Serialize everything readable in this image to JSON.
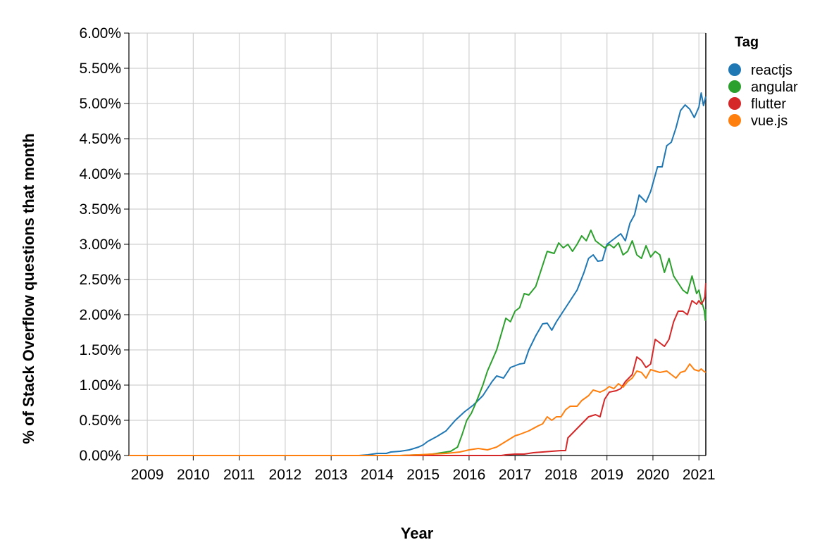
{
  "chart_data": {
    "type": "line",
    "xlabel": "Year",
    "ylabel": "% of Stack Overflow questions that month",
    "x_domain": [
      2008.6,
      2021.15
    ],
    "ylim": [
      0,
      6.0
    ],
    "x_ticks": [
      2009,
      2010,
      2011,
      2012,
      2013,
      2014,
      2015,
      2016,
      2017,
      2018,
      2019,
      2020,
      2021
    ],
    "x_tick_labels": [
      "2009",
      "2010",
      "2011",
      "2012",
      "2013",
      "2014",
      "2015",
      "2016",
      "2017",
      "2018",
      "2019",
      "2020",
      "2021"
    ],
    "y_ticks": [
      0,
      0.5,
      1.0,
      1.5,
      2.0,
      2.5,
      3.0,
      3.5,
      4.0,
      4.5,
      5.0,
      5.5,
      6.0
    ],
    "y_tick_labels": [
      "0.00%",
      "0.50%",
      "1.00%",
      "1.50%",
      "2.00%",
      "2.50%",
      "3.00%",
      "3.50%",
      "4.00%",
      "4.50%",
      "5.00%",
      "5.50%",
      "6.00%"
    ],
    "grid": true,
    "legend": {
      "title": "Tag",
      "position": "right"
    },
    "series": [
      {
        "name": "reactjs",
        "color": "#1f77b4",
        "points": [
          [
            2008.6,
            0
          ],
          [
            2013.6,
            0
          ],
          [
            2013.8,
            0.01
          ],
          [
            2014.0,
            0.03
          ],
          [
            2014.2,
            0.03
          ],
          [
            2014.3,
            0.05
          ],
          [
            2014.5,
            0.06
          ],
          [
            2014.7,
            0.08
          ],
          [
            2014.9,
            0.12
          ],
          [
            2015.0,
            0.15
          ],
          [
            2015.1,
            0.2
          ],
          [
            2015.3,
            0.27
          ],
          [
            2015.5,
            0.35
          ],
          [
            2015.7,
            0.5
          ],
          [
            2015.9,
            0.62
          ],
          [
            2016.1,
            0.72
          ],
          [
            2016.3,
            0.85
          ],
          [
            2016.5,
            1.05
          ],
          [
            2016.6,
            1.13
          ],
          [
            2016.75,
            1.1
          ],
          [
            2016.9,
            1.25
          ],
          [
            2017.1,
            1.3
          ],
          [
            2017.2,
            1.31
          ],
          [
            2017.3,
            1.5
          ],
          [
            2017.45,
            1.7
          ],
          [
            2017.6,
            1.87
          ],
          [
            2017.7,
            1.88
          ],
          [
            2017.8,
            1.78
          ],
          [
            2017.9,
            1.9
          ],
          [
            2018.0,
            2.0
          ],
          [
            2018.2,
            2.2
          ],
          [
            2018.35,
            2.35
          ],
          [
            2018.5,
            2.6
          ],
          [
            2018.6,
            2.8
          ],
          [
            2018.7,
            2.85
          ],
          [
            2018.8,
            2.76
          ],
          [
            2018.9,
            2.77
          ],
          [
            2019.0,
            3.0
          ],
          [
            2019.2,
            3.1
          ],
          [
            2019.3,
            3.15
          ],
          [
            2019.4,
            3.05
          ],
          [
            2019.5,
            3.3
          ],
          [
            2019.6,
            3.42
          ],
          [
            2019.7,
            3.7
          ],
          [
            2019.85,
            3.6
          ],
          [
            2019.95,
            3.75
          ],
          [
            2020.1,
            4.1
          ],
          [
            2020.2,
            4.1
          ],
          [
            2020.3,
            4.4
          ],
          [
            2020.4,
            4.45
          ],
          [
            2020.5,
            4.65
          ],
          [
            2020.6,
            4.9
          ],
          [
            2020.7,
            4.98
          ],
          [
            2020.8,
            4.92
          ],
          [
            2020.9,
            4.8
          ],
          [
            2021.0,
            4.95
          ],
          [
            2021.05,
            5.15
          ],
          [
            2021.1,
            4.97
          ],
          [
            2021.15,
            5.1
          ]
        ]
      },
      {
        "name": "angular",
        "color": "#2ca02c",
        "points": [
          [
            2008.6,
            0
          ],
          [
            2014.5,
            0
          ],
          [
            2014.9,
            0.01
          ],
          [
            2015.0,
            0.01
          ],
          [
            2015.2,
            0.02
          ],
          [
            2015.4,
            0.04
          ],
          [
            2015.6,
            0.06
          ],
          [
            2015.75,
            0.12
          ],
          [
            2015.85,
            0.3
          ],
          [
            2015.95,
            0.5
          ],
          [
            2016.05,
            0.6
          ],
          [
            2016.15,
            0.75
          ],
          [
            2016.3,
            1.0
          ],
          [
            2016.4,
            1.2
          ],
          [
            2016.6,
            1.5
          ],
          [
            2016.8,
            1.95
          ],
          [
            2016.9,
            1.9
          ],
          [
            2017.0,
            2.05
          ],
          [
            2017.1,
            2.1
          ],
          [
            2017.2,
            2.3
          ],
          [
            2017.3,
            2.28
          ],
          [
            2017.45,
            2.4
          ],
          [
            2017.6,
            2.7
          ],
          [
            2017.7,
            2.9
          ],
          [
            2017.85,
            2.87
          ],
          [
            2017.95,
            3.02
          ],
          [
            2018.05,
            2.95
          ],
          [
            2018.15,
            3.0
          ],
          [
            2018.25,
            2.9
          ],
          [
            2018.35,
            3.0
          ],
          [
            2018.45,
            3.12
          ],
          [
            2018.55,
            3.05
          ],
          [
            2018.65,
            3.2
          ],
          [
            2018.75,
            3.05
          ],
          [
            2018.85,
            3.0
          ],
          [
            2018.95,
            2.95
          ],
          [
            2019.05,
            3.0
          ],
          [
            2019.15,
            2.95
          ],
          [
            2019.25,
            3.02
          ],
          [
            2019.35,
            2.85
          ],
          [
            2019.45,
            2.9
          ],
          [
            2019.55,
            3.05
          ],
          [
            2019.65,
            2.85
          ],
          [
            2019.75,
            2.8
          ],
          [
            2019.85,
            2.98
          ],
          [
            2019.95,
            2.82
          ],
          [
            2020.05,
            2.9
          ],
          [
            2020.15,
            2.85
          ],
          [
            2020.25,
            2.6
          ],
          [
            2020.35,
            2.8
          ],
          [
            2020.45,
            2.55
          ],
          [
            2020.55,
            2.45
          ],
          [
            2020.65,
            2.35
          ],
          [
            2020.75,
            2.3
          ],
          [
            2020.85,
            2.55
          ],
          [
            2020.95,
            2.3
          ],
          [
            2021.0,
            2.35
          ],
          [
            2021.05,
            2.2
          ],
          [
            2021.1,
            2.1
          ],
          [
            2021.12,
            2.05
          ],
          [
            2021.14,
            1.92
          ],
          [
            2021.15,
            2.08
          ]
        ]
      },
      {
        "name": "flutter",
        "color": "#d62728",
        "points": [
          [
            2008.6,
            0
          ],
          [
            2016.7,
            0
          ],
          [
            2016.8,
            0.01
          ],
          [
            2017.0,
            0.02
          ],
          [
            2017.2,
            0.02
          ],
          [
            2017.4,
            0.04
          ],
          [
            2017.6,
            0.05
          ],
          [
            2017.8,
            0.06
          ],
          [
            2018.0,
            0.07
          ],
          [
            2018.1,
            0.07
          ],
          [
            2018.15,
            0.25
          ],
          [
            2018.3,
            0.35
          ],
          [
            2018.45,
            0.45
          ],
          [
            2018.6,
            0.55
          ],
          [
            2018.75,
            0.58
          ],
          [
            2018.85,
            0.55
          ],
          [
            2018.95,
            0.8
          ],
          [
            2019.05,
            0.9
          ],
          [
            2019.2,
            0.92
          ],
          [
            2019.3,
            0.95
          ],
          [
            2019.4,
            1.05
          ],
          [
            2019.55,
            1.15
          ],
          [
            2019.65,
            1.4
          ],
          [
            2019.75,
            1.35
          ],
          [
            2019.85,
            1.25
          ],
          [
            2019.95,
            1.3
          ],
          [
            2020.05,
            1.65
          ],
          [
            2020.15,
            1.6
          ],
          [
            2020.25,
            1.55
          ],
          [
            2020.35,
            1.65
          ],
          [
            2020.45,
            1.9
          ],
          [
            2020.55,
            2.05
          ],
          [
            2020.65,
            2.05
          ],
          [
            2020.75,
            2.0
          ],
          [
            2020.85,
            2.2
          ],
          [
            2020.95,
            2.15
          ],
          [
            2021.0,
            2.2
          ],
          [
            2021.05,
            2.15
          ],
          [
            2021.1,
            2.2
          ],
          [
            2021.13,
            2.25
          ],
          [
            2021.15,
            2.45
          ]
        ]
      },
      {
        "name": "vue.js",
        "color": "#ff7f0e",
        "points": [
          [
            2008.6,
            0
          ],
          [
            2014.5,
            0
          ],
          [
            2014.9,
            0.01
          ],
          [
            2015.2,
            0.02
          ],
          [
            2015.5,
            0.03
          ],
          [
            2015.8,
            0.05
          ],
          [
            2016.0,
            0.08
          ],
          [
            2016.2,
            0.1
          ],
          [
            2016.4,
            0.08
          ],
          [
            2016.6,
            0.12
          ],
          [
            2016.8,
            0.2
          ],
          [
            2017.0,
            0.28
          ],
          [
            2017.1,
            0.3
          ],
          [
            2017.3,
            0.35
          ],
          [
            2017.5,
            0.42
          ],
          [
            2017.6,
            0.45
          ],
          [
            2017.7,
            0.55
          ],
          [
            2017.8,
            0.5
          ],
          [
            2017.9,
            0.55
          ],
          [
            2018.0,
            0.55
          ],
          [
            2018.1,
            0.65
          ],
          [
            2018.2,
            0.7
          ],
          [
            2018.35,
            0.7
          ],
          [
            2018.45,
            0.78
          ],
          [
            2018.6,
            0.85
          ],
          [
            2018.7,
            0.93
          ],
          [
            2018.85,
            0.9
          ],
          [
            2018.95,
            0.93
          ],
          [
            2019.05,
            0.98
          ],
          [
            2019.15,
            0.95
          ],
          [
            2019.25,
            1.02
          ],
          [
            2019.35,
            0.97
          ],
          [
            2019.45,
            1.05
          ],
          [
            2019.55,
            1.1
          ],
          [
            2019.65,
            1.2
          ],
          [
            2019.75,
            1.18
          ],
          [
            2019.85,
            1.1
          ],
          [
            2019.95,
            1.22
          ],
          [
            2020.05,
            1.2
          ],
          [
            2020.15,
            1.18
          ],
          [
            2020.3,
            1.2
          ],
          [
            2020.4,
            1.15
          ],
          [
            2020.5,
            1.1
          ],
          [
            2020.6,
            1.18
          ],
          [
            2020.7,
            1.2
          ],
          [
            2020.8,
            1.3
          ],
          [
            2020.9,
            1.22
          ],
          [
            2021.0,
            1.2
          ],
          [
            2021.05,
            1.23
          ],
          [
            2021.1,
            1.2
          ],
          [
            2021.15,
            1.18
          ]
        ]
      }
    ]
  }
}
